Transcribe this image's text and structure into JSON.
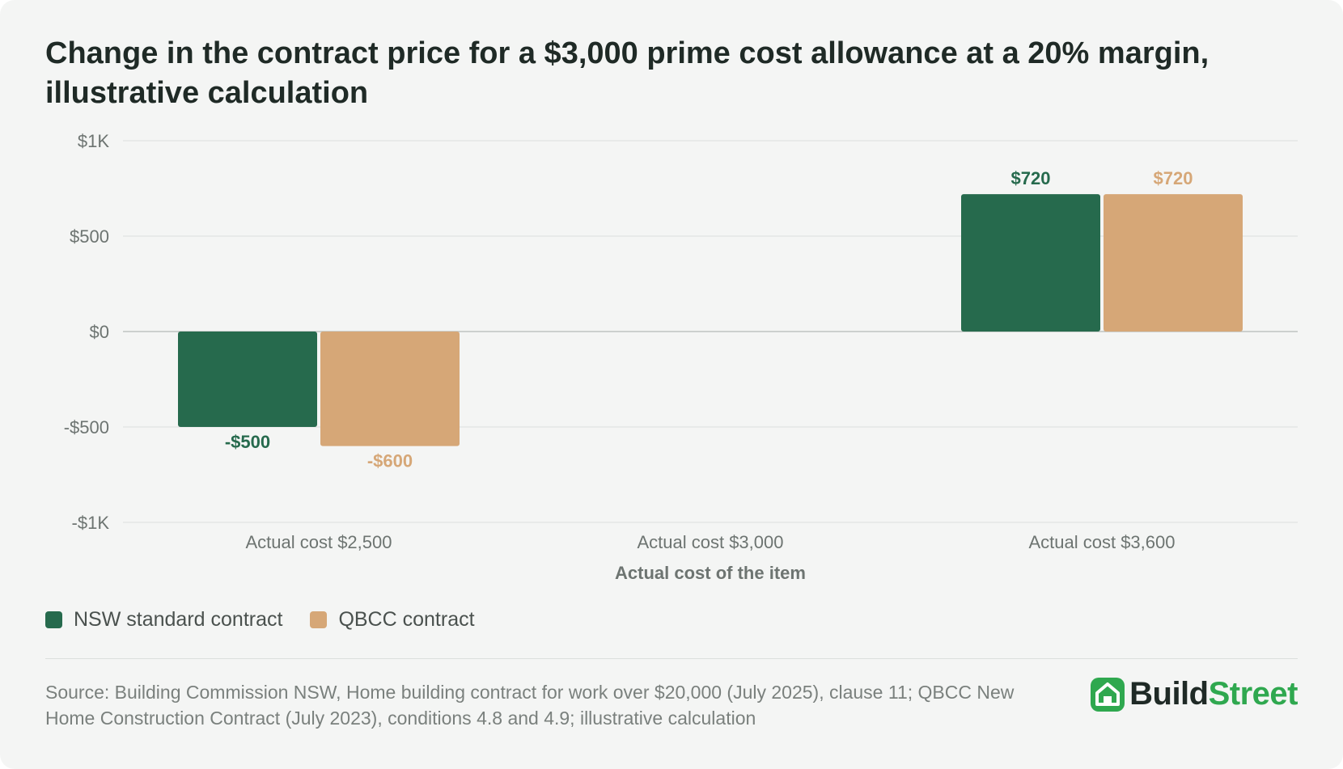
{
  "colors": {
    "nsw": "#266a4d",
    "qbcc": "#d6a777",
    "brand_green": "#2fa84f"
  },
  "chart_data": {
    "type": "bar",
    "title": "Change in the contract price for a $3,000 prime cost allowance at a 20% margin, illustrative calculation",
    "categories": [
      "Actual cost $2,500",
      "Actual cost $3,000",
      "Actual cost $3,600"
    ],
    "series": [
      {
        "name": "NSW standard contract",
        "values": [
          -500,
          0,
          720
        ],
        "labels": [
          "-$500",
          "",
          "$720"
        ]
      },
      {
        "name": "QBCC contract",
        "values": [
          -600,
          0,
          720
        ],
        "labels": [
          "-$600",
          "",
          "$720"
        ]
      }
    ],
    "xlabel": "Actual cost of the item",
    "ylabel": "",
    "ylim": [
      -1000,
      1000
    ],
    "yticks": [
      1000,
      500,
      0,
      -500,
      -1000
    ],
    "ytick_labels": [
      "$1K",
      "$500",
      "$0",
      "-$500",
      "-$1K"
    ],
    "grid": true,
    "legend_position": "bottom-left"
  },
  "legend": {
    "items": [
      {
        "label": "NSW standard contract"
      },
      {
        "label": "QBCC contract"
      }
    ]
  },
  "source": "Source: Building Commission NSW, Home building contract for work over $20,000 (July 2025), clause 11; QBCC New Home Construction Contract (July 2023), conditions 4.8 and 4.9; illustrative calculation",
  "logo": {
    "icon": "house-icon",
    "part1": "Build",
    "part2": "Street"
  }
}
